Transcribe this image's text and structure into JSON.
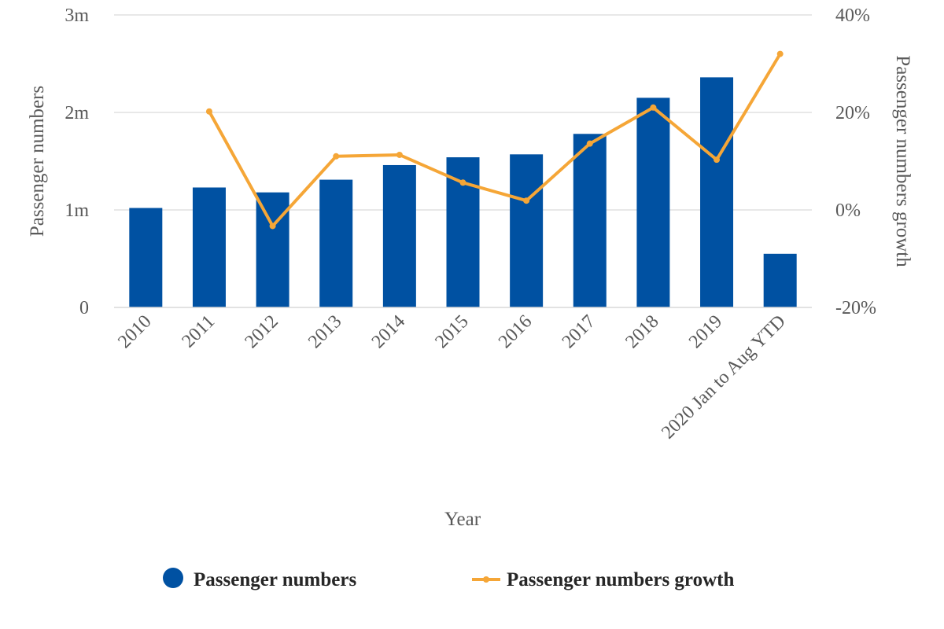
{
  "chart_data": {
    "type": "bar",
    "categories": [
      "2010",
      "2011",
      "2012",
      "2013",
      "2014",
      "2015",
      "2016",
      "2017",
      "2018",
      "2019",
      "2020 Jan to Aug YTD"
    ],
    "series": [
      {
        "name": "Passenger numbers",
        "type": "bar",
        "axis": "left",
        "color": "#0051A2",
        "values": [
          1020000,
          1230000,
          1180000,
          1310000,
          1460000,
          1540000,
          1570000,
          1780000,
          2150000,
          2360000,
          550000
        ]
      },
      {
        "name": "Passenger numbers growth",
        "type": "line",
        "axis": "right",
        "color": "#F5A637",
        "values": [
          null,
          20.2,
          -3.3,
          11.0,
          11.3,
          5.6,
          1.9,
          13.6,
          21.0,
          10.3,
          32.0
        ]
      }
    ],
    "xlabel": "Year",
    "ylabel": "Passenger numbers",
    "y2label": "Passenger numbers growth",
    "ylim": [
      0,
      3000000
    ],
    "y2lim": [
      -20,
      40
    ],
    "yticks": [
      {
        "value": 0,
        "label": "0"
      },
      {
        "value": 1000000,
        "label": "1m"
      },
      {
        "value": 2000000,
        "label": "2m"
      },
      {
        "value": 3000000,
        "label": "3m"
      }
    ],
    "y2ticks": [
      {
        "value": -20,
        "label": "-20%"
      },
      {
        "value": 0,
        "label": "0%"
      },
      {
        "value": 20,
        "label": "20%"
      },
      {
        "value": 40,
        "label": "40%"
      }
    ],
    "grid": true,
    "legend": "bottom-center",
    "gridColor": "#D9D9D9",
    "textColor": "#595959"
  }
}
